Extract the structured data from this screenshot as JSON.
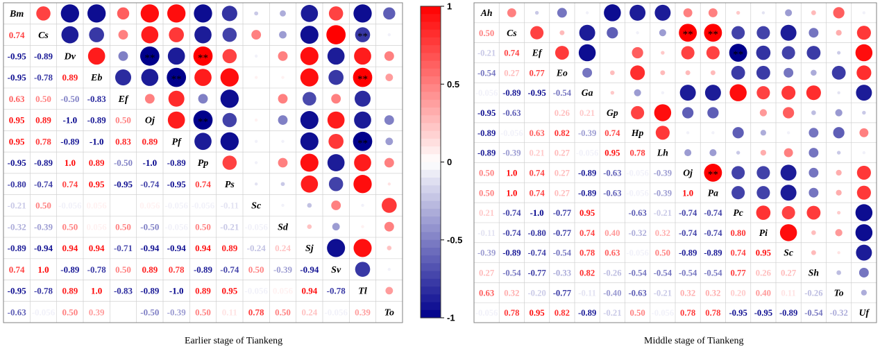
{
  "captions": {
    "left": "Earlier stage of Tiankeng",
    "right": "Middle stage of Tiankeng"
  },
  "colors": {
    "positive": "#ff0000",
    "negative": "#00008b",
    "neutral": "#ffffff",
    "grid": "#d0d0d0",
    "border": "#808080"
  },
  "colorbar": {
    "max_label": "1",
    "mid_high_label": "0.5",
    "zero_label": "0",
    "mid_low_label": "-0.5",
    "min_label": "-1"
  },
  "chart_data": [
    {
      "type": "heatmap",
      "style": "correlation matrix; lower triangle shows coefficients, upper triangle shows circles sized and colored by coefficient, ** marks significance",
      "title": "Earlier stage of Tiankeng",
      "variables": [
        "Bm",
        "Cs",
        "Dv",
        "Eb",
        "Ef",
        "Oj",
        "Pf",
        "Pp",
        "Ps",
        "Sc",
        "Sd",
        "Sj",
        "Sv",
        "Tl",
        "To"
      ],
      "lower_labels": [
        [],
        [
          "0.74"
        ],
        [
          "-0.95",
          "-0.89"
        ],
        [
          "-0.95",
          "-0.78",
          "0.89"
        ],
        [
          "0.63",
          "0.50",
          "-0.50",
          "-0.83"
        ],
        [
          "0.95",
          "0.89",
          "-1.0",
          "-0.89",
          "0.50"
        ],
        [
          "0.95",
          "0.78",
          "-0.89",
          "-1.0",
          "0.83",
          "0.89"
        ],
        [
          "-0.95",
          "-0.89",
          "1.0",
          "0.89",
          "-0.50",
          "-1.0",
          "-0.89"
        ],
        [
          "-0.80",
          "-0.74",
          "0.74",
          "0.95",
          "-0.95",
          "-0.74",
          "-0.95",
          "0.74"
        ],
        [
          "-0.21",
          "0.50",
          "-0.056",
          "0.056",
          "",
          "0.056",
          "-0.056",
          "-0.056",
          "-0.11"
        ],
        [
          "-0.32",
          "-0.39",
          "0.50",
          "0.056",
          "0.50",
          "-0.50",
          "-0.056",
          "0.50",
          "-0.21",
          "-0.056"
        ],
        [
          "-0.89",
          "-0.94",
          "0.94",
          "0.94",
          "-0.71",
          "-0.94",
          "-0.94",
          "0.94",
          "0.89",
          "-0.24",
          "0.24"
        ],
        [
          "0.74",
          "1.0",
          "-0.89",
          "-0.78",
          "0.50",
          "0.89",
          "0.78",
          "-0.89",
          "-0.74",
          "0.50",
          "-0.39",
          "-0.94"
        ],
        [
          "-0.95",
          "-0.78",
          "0.89",
          "1.0",
          "-0.83",
          "-0.89",
          "-1.0",
          "0.89",
          "0.95",
          "-0.056",
          "0.056",
          "0.94",
          "-0.78"
        ],
        [
          "-0.63",
          "-0.056",
          "0.50",
          "0.39",
          "",
          "-0.50",
          "-0.39",
          "0.50",
          "0.11",
          "0.78",
          "0.50",
          "0.24",
          "-0.056",
          "0.39"
        ]
      ],
      "significance": [
        [
          2,
          5
        ],
        [
          3,
          6
        ],
        [
          1,
          13
        ],
        [
          2,
          7
        ],
        [
          3,
          13
        ],
        [
          5,
          7
        ],
        [
          6,
          13
        ]
      ],
      "colorbar_range": [
        -1,
        1
      ]
    },
    {
      "type": "heatmap",
      "style": "correlation matrix; lower triangle shows coefficients, upper triangle shows circles sized and colored by coefficient, ** marks significance",
      "title": "Middle stage of Tiankeng",
      "variables": [
        "Ah",
        "Cs",
        "Ef",
        "Eo",
        "Ga",
        "Gp",
        "Hp",
        "Lh",
        "Oj",
        "Pa",
        "Pc",
        "Pi",
        "Sc",
        "Sh",
        "To",
        "Uf"
      ],
      "lower_labels": [
        [],
        [
          "0.50"
        ],
        [
          "-0.21",
          "0.74"
        ],
        [
          "-0.54",
          "0.27",
          "0.77"
        ],
        [
          "-0.056",
          "-0.89",
          "-0.95",
          "-0.54"
        ],
        [
          "-0.95",
          "-0.63",
          "",
          "0.26",
          "0.21"
        ],
        [
          "-0.89",
          "-0.056",
          "0.63",
          "0.82",
          "-0.39",
          "0.74"
        ],
        [
          "-0.89",
          "-0.39",
          "0.21",
          "0.27",
          "-0.056",
          "0.95",
          "0.78"
        ],
        [
          "0.50",
          "1.0",
          "0.74",
          "0.27",
          "-0.89",
          "-0.63",
          "-0.056",
          "-0.39"
        ],
        [
          "0.50",
          "1.0",
          "0.74",
          "0.27",
          "-0.89",
          "-0.63",
          "-0.056",
          "-0.39",
          "1.0"
        ],
        [
          "0.21",
          "-0.74",
          "-1.0",
          "-0.77",
          "0.95",
          "",
          "-0.63",
          "-0.21",
          "-0.74",
          "-0.74"
        ],
        [
          "-0.11",
          "-0.74",
          "-0.80",
          "-0.77",
          "0.74",
          "0.40",
          "-0.32",
          "0.32",
          "-0.74",
          "-0.74",
          "0.80"
        ],
        [
          "-0.39",
          "-0.89",
          "-0.74",
          "-0.54",
          "0.78",
          "0.63",
          "-0.056",
          "0.50",
          "-0.89",
          "-0.89",
          "0.74",
          "0.95"
        ],
        [
          "0.27",
          "-0.54",
          "-0.77",
          "-0.33",
          "0.82",
          "-0.26",
          "-0.54",
          "-0.54",
          "-0.54",
          "-0.54",
          "0.77",
          "0.26",
          "0.27"
        ],
        [
          "0.63",
          "0.32",
          "-0.20",
          "-0.77",
          "-0.11",
          "-0.40",
          "-0.63",
          "-0.21",
          "0.32",
          "0.32",
          "0.20",
          "0.40",
          "0.11",
          "-0.26"
        ],
        [
          "-0.056",
          "0.78",
          "0.95",
          "0.82",
          "-0.89",
          "-0.21",
          "0.50",
          "-0.056",
          "0.78",
          "0.78",
          "-0.95",
          "-0.95",
          "-0.89",
          "-0.54",
          "-0.32"
        ]
      ],
      "significance": [
        [
          1,
          8
        ],
        [
          1,
          9
        ],
        [
          2,
          10
        ],
        [
          8,
          9
        ]
      ],
      "colorbar_range": [
        -1,
        1
      ]
    }
  ]
}
